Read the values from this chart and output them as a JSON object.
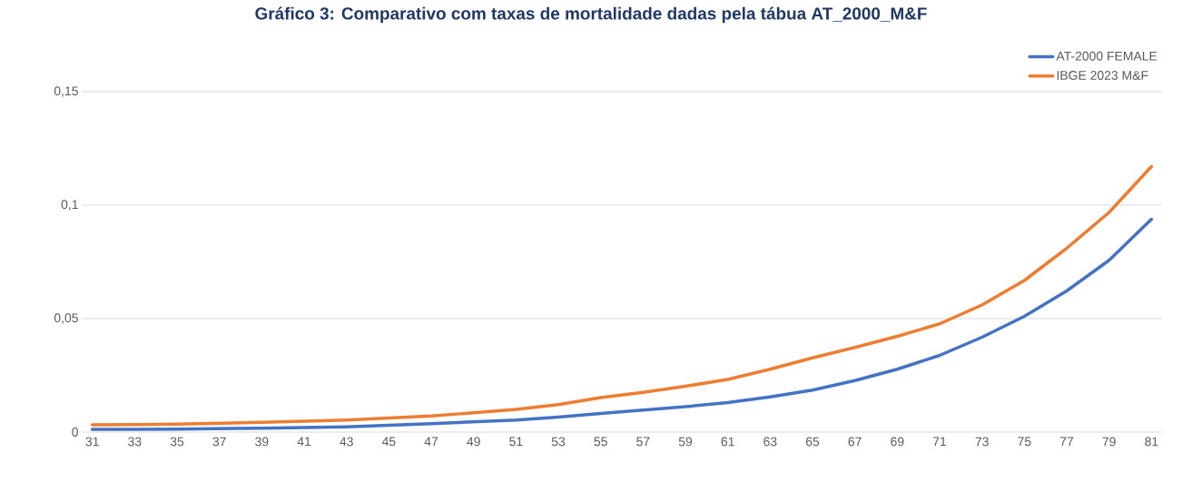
{
  "chart_data": {
    "type": "line",
    "title": "Gráfico 3: Comparativo com taxas de mortalidade dadas pela tábua AT_2000_M&F",
    "x": [
      31,
      33,
      35,
      37,
      39,
      41,
      43,
      45,
      47,
      49,
      51,
      53,
      55,
      57,
      59,
      61,
      63,
      65,
      67,
      69,
      71,
      73,
      75,
      77,
      79,
      81
    ],
    "series": [
      {
        "name": "AT-2000 FEMALE",
        "color": "#4472c4",
        "values": [
          0.0012,
          0.0012,
          0.0013,
          0.0015,
          0.0017,
          0.002,
          0.0023,
          0.003,
          0.0037,
          0.0045,
          0.0053,
          0.0066,
          0.0082,
          0.0097,
          0.0112,
          0.013,
          0.0155,
          0.0185,
          0.0227,
          0.0277,
          0.0338,
          0.0418,
          0.051,
          0.0622,
          0.0757,
          0.0938
        ]
      },
      {
        "name": "IBGE 2023 M&F",
        "color": "#ed7d31",
        "values": [
          0.0032,
          0.0033,
          0.0035,
          0.0039,
          0.0043,
          0.0048,
          0.0053,
          0.0062,
          0.0071,
          0.0085,
          0.01,
          0.0121,
          0.0152,
          0.0175,
          0.0202,
          0.0232,
          0.0277,
          0.0327,
          0.0373,
          0.0422,
          0.0477,
          0.056,
          0.0668,
          0.081,
          0.0968,
          0.117
        ]
      }
    ],
    "xlim": [
      30.5,
      81.5
    ],
    "xticks": [
      31,
      33,
      35,
      37,
      39,
      41,
      43,
      45,
      47,
      49,
      51,
      53,
      55,
      57,
      59,
      61,
      63,
      65,
      67,
      69,
      71,
      73,
      75,
      77,
      79,
      81
    ],
    "ylim": [
      0,
      0.15
    ],
    "yticks": [
      {
        "value": 0,
        "label": "0"
      },
      {
        "value": 0.05,
        "label": "0,05"
      },
      {
        "value": 0.1,
        "label": "0,1"
      },
      {
        "value": 0.15,
        "label": "0,15"
      }
    ],
    "grid": "y",
    "legend": "top right",
    "marker": "none",
    "line_style": "solid"
  }
}
